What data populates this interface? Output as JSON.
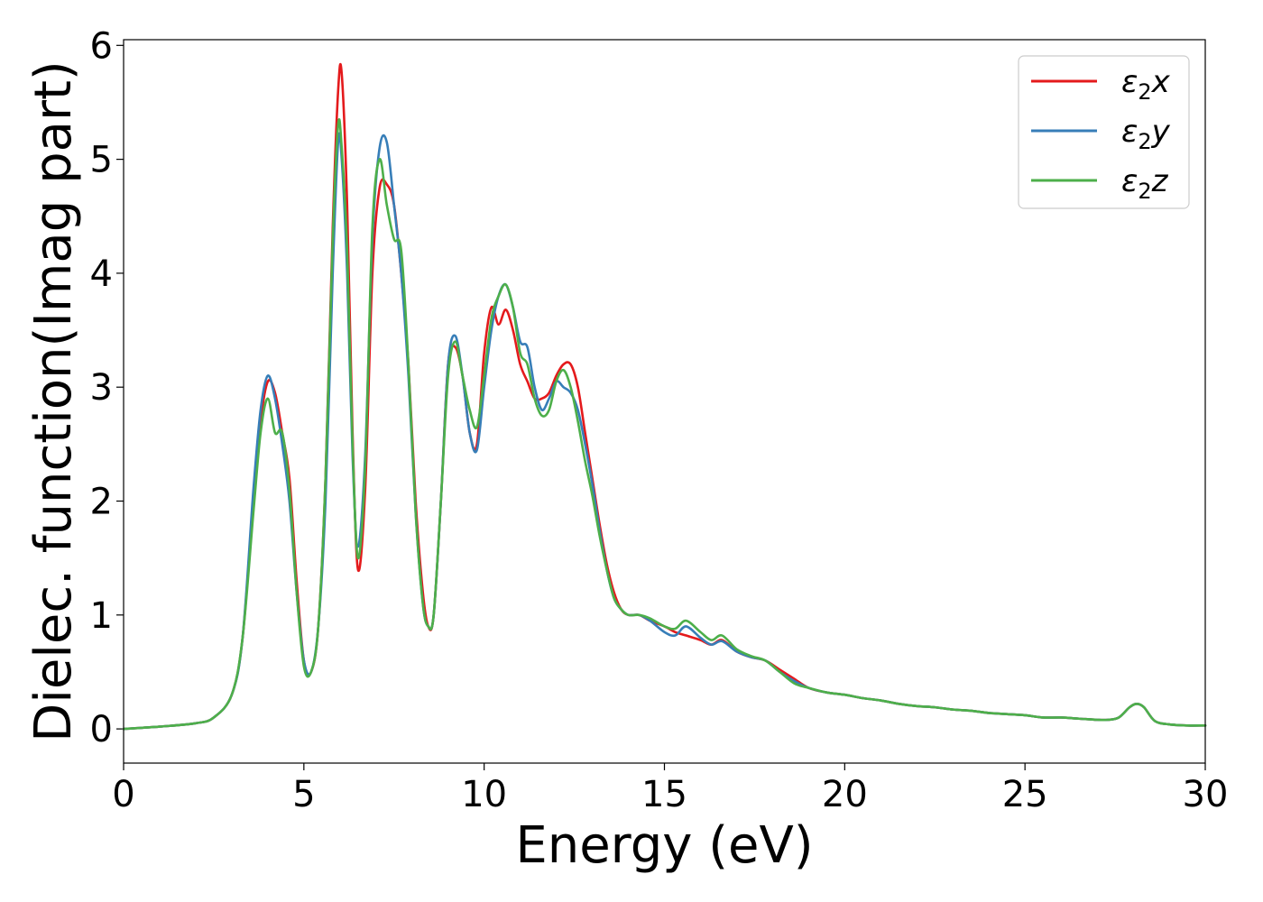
{
  "chart_data": {
    "type": "line",
    "xlabel": "Energy (eV)",
    "ylabel": "Dielec. function(Imag part)",
    "xlim": [
      0,
      30
    ],
    "ylim": [
      -0.3,
      6.05
    ],
    "xticks": [
      "0",
      "5",
      "10",
      "15",
      "20",
      "25",
      "30"
    ],
    "yticks": [
      "0",
      "1",
      "2",
      "3",
      "4",
      "5",
      "6"
    ],
    "grid": false,
    "legend_position": "top-right",
    "series": [
      {
        "name": "ε₂x",
        "legend_main": "ε",
        "legend_sub": "2",
        "legend_var": "x",
        "color": "#e41a1c",
        "x": [
          0,
          1,
          2,
          2.5,
          3,
          3.3,
          3.6,
          3.8,
          4.0,
          4.2,
          4.4,
          4.6,
          4.8,
          5.0,
          5.2,
          5.4,
          5.6,
          5.8,
          5.95,
          6.05,
          6.2,
          6.35,
          6.5,
          6.7,
          6.9,
          7.1,
          7.3,
          7.5,
          7.7,
          7.9,
          8.1,
          8.3,
          8.45,
          8.6,
          8.8,
          9.0,
          9.2,
          9.4,
          9.6,
          9.8,
          10.0,
          10.2,
          10.4,
          10.6,
          10.8,
          11.0,
          11.2,
          11.4,
          11.6,
          11.8,
          12.0,
          12.2,
          12.4,
          12.6,
          12.8,
          13.0,
          13.2,
          13.4,
          13.6,
          13.8,
          14.0,
          14.3,
          14.6,
          15.0,
          15.3,
          15.6,
          16.0,
          16.3,
          16.6,
          17.0,
          17.4,
          17.8,
          18.2,
          18.6,
          19.0,
          19.5,
          20,
          20.5,
          21,
          21.5,
          22,
          22.5,
          23,
          23.5,
          24,
          24.5,
          25,
          25.5,
          26,
          26.5,
          27,
          27.3,
          27.6,
          27.9,
          28.1,
          28.3,
          28.6,
          29,
          29.5,
          30
        ],
        "y": [
          0.0,
          0.02,
          0.05,
          0.1,
          0.3,
          0.8,
          2.0,
          2.7,
          3.05,
          2.95,
          2.6,
          2.2,
          1.3,
          0.6,
          0.5,
          0.9,
          2.2,
          4.4,
          5.6,
          5.75,
          4.6,
          2.6,
          1.4,
          2.1,
          4.0,
          4.75,
          4.78,
          4.6,
          4.0,
          3.2,
          2.0,
          1.2,
          0.9,
          1.0,
          2.0,
          3.2,
          3.35,
          3.1,
          2.6,
          2.5,
          3.3,
          3.7,
          3.55,
          3.68,
          3.5,
          3.2,
          3.05,
          2.9,
          2.9,
          2.95,
          3.1,
          3.2,
          3.2,
          3.0,
          2.6,
          2.2,
          1.8,
          1.45,
          1.2,
          1.05,
          1.0,
          1.0,
          0.95,
          0.9,
          0.85,
          0.82,
          0.78,
          0.74,
          0.78,
          0.68,
          0.63,
          0.6,
          0.52,
          0.44,
          0.36,
          0.32,
          0.3,
          0.27,
          0.25,
          0.22,
          0.2,
          0.19,
          0.17,
          0.16,
          0.14,
          0.13,
          0.12,
          0.1,
          0.1,
          0.09,
          0.08,
          0.08,
          0.1,
          0.19,
          0.22,
          0.19,
          0.07,
          0.04,
          0.03,
          0.03
        ]
      },
      {
        "name": "ε₂y",
        "legend_main": "ε",
        "legend_sub": "2",
        "legend_var": "y",
        "color": "#377eb8",
        "x": [
          0,
          1,
          2,
          2.5,
          3,
          3.3,
          3.6,
          3.8,
          4.0,
          4.2,
          4.4,
          4.6,
          4.8,
          5.0,
          5.2,
          5.4,
          5.6,
          5.8,
          5.95,
          6.05,
          6.2,
          6.35,
          6.5,
          6.7,
          6.9,
          7.1,
          7.3,
          7.5,
          7.7,
          7.9,
          8.1,
          8.3,
          8.45,
          8.6,
          8.8,
          9.0,
          9.2,
          9.4,
          9.6,
          9.8,
          10.0,
          10.2,
          10.4,
          10.6,
          10.8,
          11.0,
          11.2,
          11.4,
          11.6,
          11.8,
          12.0,
          12.2,
          12.4,
          12.6,
          12.8,
          13.0,
          13.2,
          13.4,
          13.6,
          13.8,
          14.0,
          14.3,
          14.6,
          15.0,
          15.3,
          15.6,
          16.0,
          16.3,
          16.6,
          17.0,
          17.4,
          17.8,
          18.2,
          18.6,
          19.0,
          19.5,
          20,
          20.5,
          21,
          21.5,
          22,
          22.5,
          23,
          23.5,
          24,
          24.5,
          25,
          25.5,
          26,
          26.5,
          27,
          27.3,
          27.6,
          27.9,
          28.1,
          28.3,
          28.6,
          29,
          29.5,
          30
        ],
        "y": [
          0.0,
          0.02,
          0.05,
          0.1,
          0.3,
          0.8,
          2.1,
          2.8,
          3.1,
          2.9,
          2.5,
          2.0,
          1.2,
          0.6,
          0.5,
          0.9,
          2.0,
          4.0,
          5.15,
          5.0,
          4.0,
          2.4,
          1.6,
          2.4,
          4.3,
          5.1,
          5.15,
          4.6,
          4.0,
          3.1,
          1.9,
          1.1,
          0.9,
          1.0,
          2.0,
          3.2,
          3.45,
          3.1,
          2.6,
          2.45,
          3.0,
          3.5,
          3.8,
          3.9,
          3.7,
          3.4,
          3.35,
          3.0,
          2.8,
          2.9,
          3.05,
          3.0,
          2.95,
          2.8,
          2.5,
          2.15,
          1.75,
          1.4,
          1.15,
          1.05,
          1.0,
          1.0,
          0.95,
          0.85,
          0.82,
          0.9,
          0.8,
          0.74,
          0.77,
          0.68,
          0.63,
          0.6,
          0.5,
          0.42,
          0.36,
          0.32,
          0.3,
          0.27,
          0.25,
          0.22,
          0.2,
          0.19,
          0.17,
          0.16,
          0.14,
          0.13,
          0.12,
          0.1,
          0.1,
          0.09,
          0.08,
          0.08,
          0.1,
          0.19,
          0.22,
          0.19,
          0.07,
          0.04,
          0.03,
          0.03
        ]
      },
      {
        "name": "ε₂z",
        "legend_main": "ε",
        "legend_sub": "2",
        "legend_var": "z",
        "color": "#4daf4a",
        "x": [
          0,
          1,
          2,
          2.5,
          3,
          3.3,
          3.6,
          3.8,
          4.0,
          4.2,
          4.4,
          4.6,
          4.8,
          5.0,
          5.2,
          5.4,
          5.6,
          5.8,
          5.95,
          6.05,
          6.2,
          6.35,
          6.5,
          6.7,
          6.9,
          7.1,
          7.3,
          7.5,
          7.7,
          7.9,
          8.1,
          8.3,
          8.45,
          8.6,
          8.8,
          9.0,
          9.2,
          9.4,
          9.6,
          9.8,
          10.0,
          10.2,
          10.4,
          10.6,
          10.8,
          11.0,
          11.2,
          11.4,
          11.6,
          11.8,
          12.0,
          12.2,
          12.4,
          12.6,
          12.8,
          13.0,
          13.2,
          13.4,
          13.6,
          13.8,
          14.0,
          14.3,
          14.6,
          15.0,
          15.3,
          15.6,
          16.0,
          16.3,
          16.6,
          17.0,
          17.4,
          17.8,
          18.2,
          18.6,
          19.0,
          19.5,
          20,
          20.5,
          21,
          21.5,
          22,
          22.5,
          23,
          23.5,
          24,
          24.5,
          25,
          25.5,
          26,
          26.5,
          27,
          27.3,
          27.6,
          27.9,
          28.1,
          28.3,
          28.6,
          29,
          29.5,
          30
        ],
        "y": [
          0.0,
          0.02,
          0.05,
          0.1,
          0.3,
          0.8,
          1.9,
          2.6,
          2.9,
          2.6,
          2.6,
          2.1,
          1.2,
          0.55,
          0.5,
          0.9,
          2.2,
          4.3,
          5.3,
          5.1,
          4.2,
          2.5,
          1.5,
          2.3,
          4.4,
          5.0,
          4.6,
          4.3,
          4.2,
          3.2,
          1.9,
          1.1,
          0.9,
          1.0,
          2.0,
          3.1,
          3.4,
          3.1,
          2.8,
          2.65,
          3.1,
          3.6,
          3.8,
          3.9,
          3.7,
          3.3,
          3.2,
          2.9,
          2.75,
          2.8,
          3.05,
          3.15,
          3.0,
          2.7,
          2.35,
          2.05,
          1.7,
          1.4,
          1.15,
          1.05,
          1.0,
          1.0,
          0.97,
          0.9,
          0.88,
          0.95,
          0.85,
          0.78,
          0.82,
          0.7,
          0.64,
          0.6,
          0.5,
          0.4,
          0.36,
          0.32,
          0.3,
          0.27,
          0.25,
          0.22,
          0.2,
          0.19,
          0.17,
          0.16,
          0.14,
          0.13,
          0.12,
          0.1,
          0.1,
          0.09,
          0.08,
          0.08,
          0.1,
          0.19,
          0.22,
          0.19,
          0.07,
          0.04,
          0.03,
          0.03
        ]
      }
    ]
  }
}
